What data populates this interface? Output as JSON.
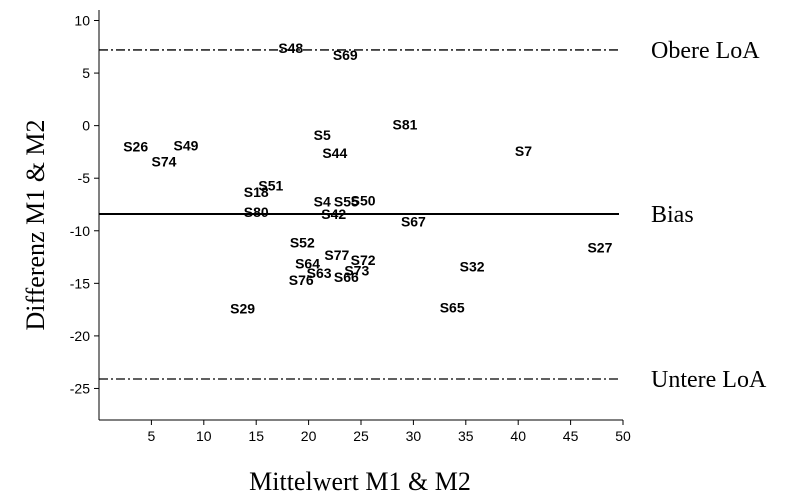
{
  "chart_data": {
    "type": "scatter",
    "title": "",
    "xlabel": "Mittelwert M1 & M2",
    "ylabel": "Differenz M1 & M2",
    "xlim": [
      0,
      50
    ],
    "ylim": [
      -28,
      11
    ],
    "x_ticks": [
      5,
      10,
      15,
      20,
      25,
      30,
      35,
      40,
      45,
      50
    ],
    "y_ticks": [
      10,
      5,
      0,
      -5,
      -10,
      -15,
      -20,
      -25
    ],
    "grid": false,
    "lines": [
      {
        "label": "Obere LoA",
        "y": 7.2,
        "style": "dashdot"
      },
      {
        "label": "Bias",
        "y": -8.4,
        "style": "solid"
      },
      {
        "label": "Untere LoA",
        "y": -24.1,
        "style": "dashdot"
      }
    ],
    "points": [
      {
        "label": "S48",
        "x": 18.3,
        "y": 7.4
      },
      {
        "label": "S69",
        "x": 23.5,
        "y": 6.7
      },
      {
        "label": "S81",
        "x": 29.2,
        "y": 0.1
      },
      {
        "label": "S5",
        "x": 21.3,
        "y": -0.9
      },
      {
        "label": "S26",
        "x": 3.5,
        "y": -2.0
      },
      {
        "label": "S49",
        "x": 8.3,
        "y": -1.9
      },
      {
        "label": "S7",
        "x": 40.5,
        "y": -2.4
      },
      {
        "label": "S44",
        "x": 22.5,
        "y": -2.6
      },
      {
        "label": "S74",
        "x": 6.2,
        "y": -3.4
      },
      {
        "label": "S51",
        "x": 16.4,
        "y": -5.7
      },
      {
        "label": "S18",
        "x": 15.0,
        "y": -6.3
      },
      {
        "label": "S4",
        "x": 21.3,
        "y": -7.2
      },
      {
        "label": "S55",
        "x": 23.6,
        "y": -7.2
      },
      {
        "label": "S50",
        "x": 25.2,
        "y": -7.1
      },
      {
        "label": "S80",
        "x": 15.0,
        "y": -8.2
      },
      {
        "label": "S42",
        "x": 22.4,
        "y": -8.4
      },
      {
        "label": "S67",
        "x": 30.0,
        "y": -9.1
      },
      {
        "label": "S52",
        "x": 19.4,
        "y": -11.1
      },
      {
        "label": "S27",
        "x": 47.8,
        "y": -11.6
      },
      {
        "label": "S77",
        "x": 22.7,
        "y": -12.3
      },
      {
        "label": "S72",
        "x": 25.2,
        "y": -12.8
      },
      {
        "label": "S64",
        "x": 19.9,
        "y": -13.1
      },
      {
        "label": "S32",
        "x": 35.6,
        "y": -13.4
      },
      {
        "label": "S73",
        "x": 24.6,
        "y": -13.8
      },
      {
        "label": "S63",
        "x": 21.0,
        "y": -14.0
      },
      {
        "label": "S66",
        "x": 23.6,
        "y": -14.4
      },
      {
        "label": "S76",
        "x": 19.3,
        "y": -14.7
      },
      {
        "label": "S29",
        "x": 13.7,
        "y": -17.4
      },
      {
        "label": "S65",
        "x": 33.7,
        "y": -17.3
      }
    ]
  }
}
